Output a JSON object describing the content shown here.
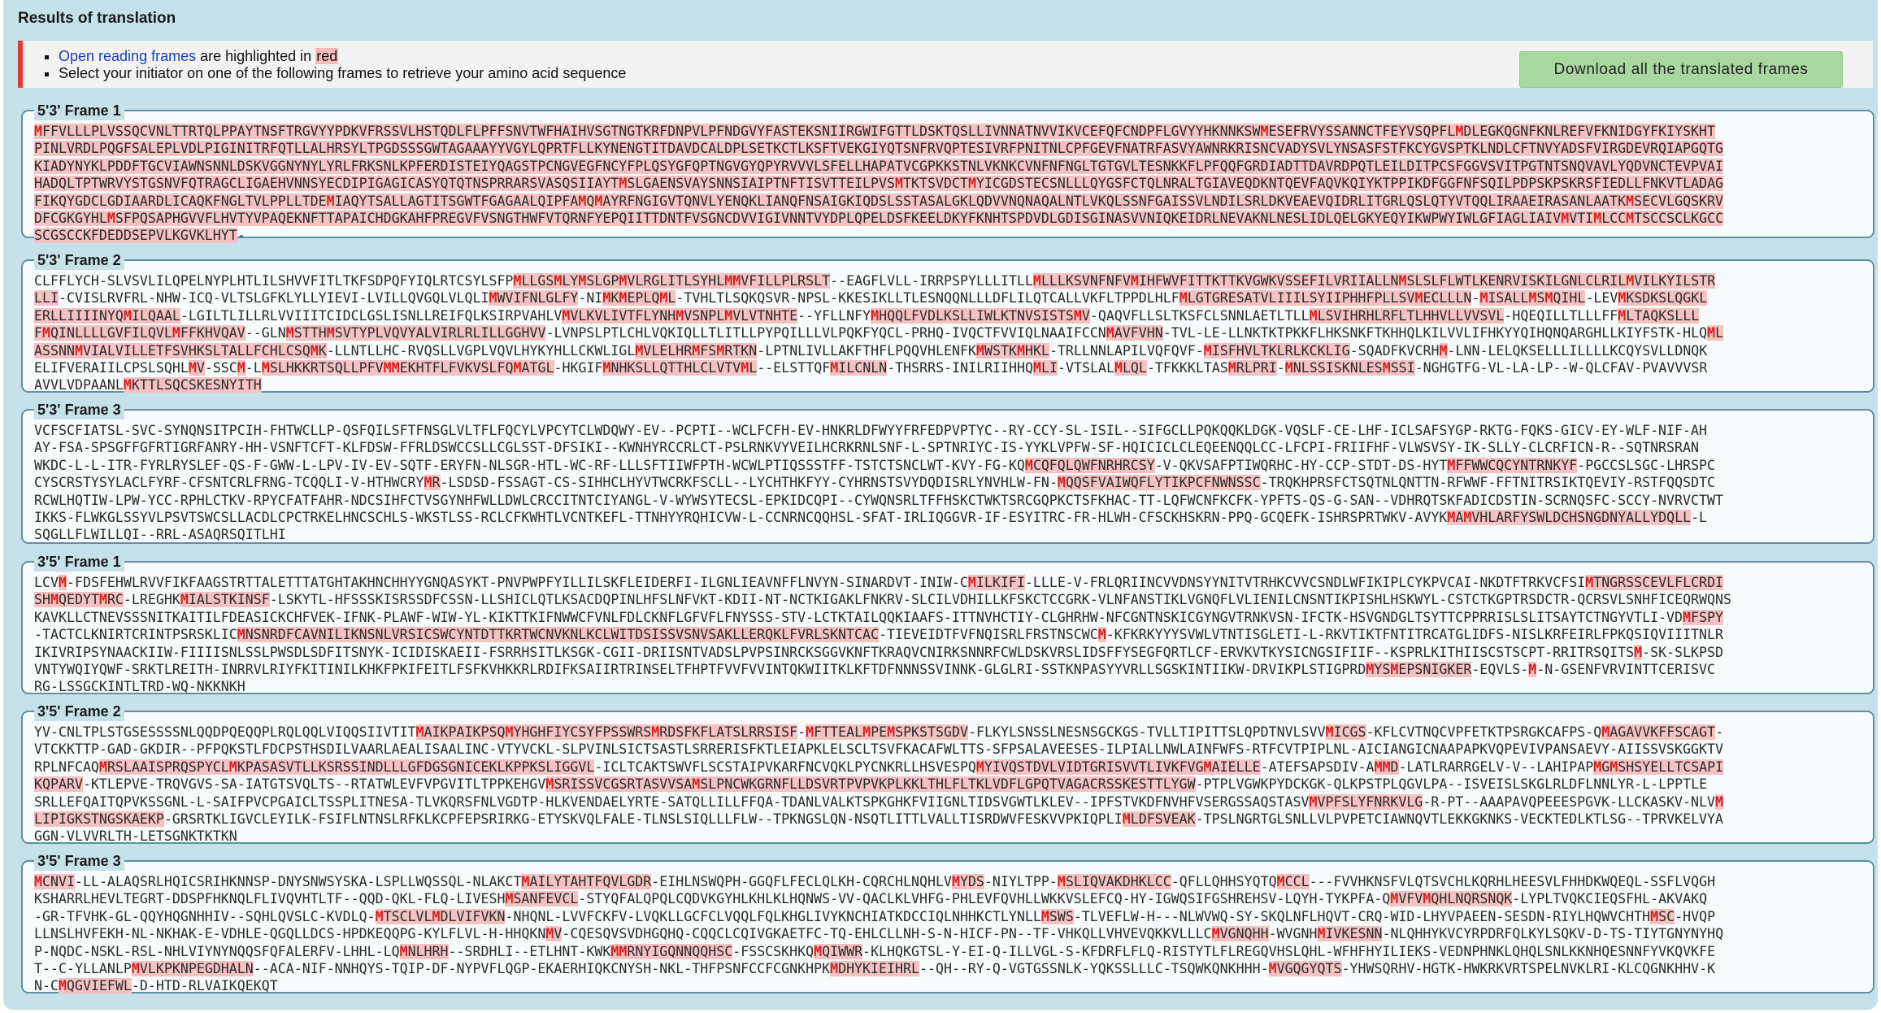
{
  "header": {
    "title": "Results of translation",
    "notice_orf_link": "Open reading frames",
    "notice_orf_rest": " are highlighted in ",
    "notice_orf_color": "red",
    "notice_select": "Select your initiator on one of the following frames to retrieve your amino acid sequence",
    "download_label": "Download all the translated frames"
  },
  "colors": {
    "highlight": "#f5c2c2",
    "start_codon": "#d81f1f",
    "notice_bar": "#e53935",
    "button": "#a8d8a0"
  },
  "frames": [
    {
      "title": "5'3' Frame 1",
      "lines": [
        "MFFVLLLPLVSSQCVNLTTRTQLPPAYTNSFTRGVYYPDKVFRSSVLHSTQDLFLPFFSNVTWFHAIHVSGTNGTKRFDNPVLPFNDGVYFASTEKSNIIRGWIFGTTLDSKTQSLLIVNNATNVVIKVCEFQFCNDPFLGVYYHKNNKSWMESEFRVYSSANNCTFEYVSQPFLMDLEGKQGNFKNLREFVFKNIDGYFKIYSKHT",
        "PINLVRDLPQGFSALEPLVDLPIGINITRFQTLLALHRSYLTPGDSSSGWTAGAAAYYVGYLQPRTFLLKYNENGTITDAVDCALDPLSETKCTLKSFTVEKGIYQTSNFRVQPTESIVRFPNITNLCPFGEVFNATRFASVYAWNRKRISNCVADYSVLYNSASFSTFKCYGVSPTKLNDLCFTNVYADSFVIRGDEVRQIAPGQTG",
        "KIADYNYKLPDDFTGCVIAWNSNNLDSKVGGNYNYLYRLFRKSNLKPFERDISTEIYQAGSTPCNGVEGFNCYFPLQSYGFQPTNGVGYQPYRVVVLSFELLHAPATVCGPKKSTNLVKNKCVNFNFNGLTGTGVLTESNKKFLPFQQFGRDIADTTDAVRDPQTLEILDITPCSFGGVSVITPGTNTSNQVAVLYQDVNCTEVPVAI",
        "HADQLTPTWRVYSTGSNVFQTRAGCLIGAEHVNNSYECDIPIGAGICASYQTQTNSPRRARSVASQSIIAYTMSLGAENSVAYSNNSIAIPTNFTISVTTEILPVSMTKTSVDCTMYICGDSTECSNLLLQYGSFCTQLNRALTGIAVEQDKNTQEVFAQVKQIYKTPPIKDFGGFNFSQILPDPSKPSKRSFIEDLLFNKVTLADAG",
        "FIKQYGDCLGDIAARDLICAQKFNGLTVLPPLLTDEMIAQYTSALLAGTITSGWTFGAGAALQIPFAMQMAYRFNGIGVTQNVLYENQKLIANQFNSAIGKIQDSLSSTASALGKLQDVVNQNAQALNTLVKQLSSNFGAISSVLNDILSRLDKVEAEVQIDRLITGRLQSLQTYVTQQLIRAAEIRASANLAATKMSECVLGQSKRV",
        "DFCGKGYHLMSFPQSAPHGVVFLHVTYVPAQEKNFTTAPAICHDGKAHFPREGVFVSNGTHWFVTQRNFYEPQIITTDNTFVSGNCDVVIGIVNNTVYDPLQPELDSFKEELDKYFKNHTSPDVDLGDISGINASVVNIQKEIDRLNEVAKNLNESLIDLQELGKYEQYIKWPWYIWLGFIAGLIAIVMVTIMLCCMTSCCSCLKGCC",
        "SCGSCCKFDEDDSEPVLKGVKLHYT-"
      ]
    },
    {
      "title": "5'3' Frame 2",
      "lines": [
        "CLFFLYCH-SLVSVLILQPELNYPLHTLILSHVVFITLTKFSDPQFYIQLRTCSYLSFPMLLGSMLYMSLGPMVLRGLITLSYHLMMVFILLPLRSLT--EAGFLVLL-IRRPSPYLLLITLLMLLLKSVNFNFVMIHFWVFITTKTTKVGWKVSSEFILVRIIALLNMSLSLFLWTLKENRVISKILGNLCLRILMVILKYILSTR",
        "LLI-CVISLRVFRL-NHW-ICQ-VLTSLGFKLYLLYIEVI-LVILLQVGQLVLQLIMWVIFNLGLFY-NIMKMEPLQML-TVHLTLSQKQSVR-NPSL-KKESIKLLTLESNQQNLLLDFLILQTCALLVKFLTPPDLHLFMLGTGRESATVLIIILSYIIPHHFPLLSVMECLLLN-MISALLMSMQIHL-LEVMKSDKSLQGKL",
        "ERLLIIIINYQMILQAAL-LGILTLILLRLVVIIITCIDCLGSLISNLLREIFQLKSIRPVAHLVMVLKVLIVTFLYNHMVSNPLMVLVTNHTE--YFLLNFYMHQQLFVDLKSLLIWLKTNVSISTSMV-QAQVFLLSLTKSFCLSNNLAETLTLLMLSVIHRHLRFLTLHHVLLVVSVL-HQEQILLTLLLFFMLTAQKSLLL",
        "FMQINLLLLGVFILQVLMFFKHVQAV--GLNMSTTHMSVTYPLVQVYALVIRLRLILLGGHVV-LVNPSLPTLCHLVQKIQLLTLITLLPYPQILLLVLPQKFYQCL-PRHQ-IVQCTFVVIQLNAAIFCCNMAVFVHN-TVL-LE-LLNKTKTPKKFLHKSNKFTKHHQLKILVVLIFHKYYQIHQNQARGHLLKIYFSTK-HLQML",
        "ASSNNMVIALVILLETFSVHKSLTALLFCHLCSQMK-LLNTLLHC-RVQSLLVGPLVQVLHYKYHLLCKWLIGLMVLELHRMFSMRTKN-LPTNLIVLLAKFTHFLPQQVHLENFKMWSTKMHKL-TRLLNNLAPILVQFQVF-MISFHVLTKLRLKCKLIG-SQADFKVCRHM-LNN-LELQKSELLLILLLLKCQYSVLLDNQK",
        "ELIFVERAIILCPSLSQHLMV-SSCM-LMSLHKKRTSQLLPFVMMEKHTFLFVKVSLFQMATGL-HKGIFMNHKSLLQTTHLCLVTVML--ELSTTQFMILCNLN-THSRRS-INILRIIHHQMLI-VTSLALMLQL-TFKKKLTASMRLPRI-MNLSSISKNLESMSSI-NGHGTFG-VL-LA-LP--W-QLCFAV-PVAVVVSR",
        "AVVLVDPAANLMKTTLSQCSKESNYITH"
      ]
    },
    {
      "title": "5'3' Frame 3",
      "lines": [
        "VCFSCFIATSL-SVC-SYNQNSITPCIH-FHTWCLLP-QSFQILSFTFNSGLVLTFLFQCYLVPCYTCLWDQWY-EV--PCPTI--WCLFCFH-EV-HNKRLDFWYYFRFEDPVPTYC--RY-CCY-SL-ISIL--SIFGCLLPQKQQKLDGK-VQSLF-CE-LHF-ICLSAFSYGP-RKTG-FQKS-GICV-EY-WLF-NIF-AH",
        "AY-FSA-SPSGFFGFRTIGRFANRY-HH-VSNFTCFT-KLFDSW-FFRLDSWCCSLLCGLSST-DFSIKI--KWNHYRCCRLCT-PSLRNKVYVEILHCRKRNLSNF-L-SPTNRIYC-IS-YYKLVPFW-SF-HQICICLCLEQEENQQLCC-LFCPI-FRIIFHF-VLWSVSY-IK-SLLY-CLCRFICN-R--SQTNRSRAN",
        "WKDC-L-L-ITR-FYRLRYSLEF-QS-F-GWW-L-LPV-IV-EV-SQTF-ERYFN-NLSGR-HTL-WC-RF-LLLSFTIIWFPTH-WCWLPTIQSSSTFF-TSTCTSNCLWT-KVY-FG-KQMCQFQLQWFNRHRCSY-V-QKVSAFPTIWQRHC-HY-CCP-STDT-DS-HYTMFFWWCQCYNTRNKYF-PGCCSLSGC-LHRSPC",
        "CYSCRSTYSYLACLFYRF-CFSNTCRLFRNG-TCQQLI-V-HTHWCRYMR-LSDSD-FSSAGT-CS-SIHHCLHYVTWCRKFSCLL--LYCHTHKFYY-CYHRNSTSVYDQDISRLYNVHLW-FN-MQQSFVAIWQFLYTIKPCFNWNSSC-TRQKHPRSFCTSQTNLQNTTN-RFWWF-FFTNITRSIKTQEVIY-RSTFQQSDTC",
        "RCWLHQTIW-LPW-YCC-RPHLCTKV-RPYCFATFAHR-NDCSIHFCTVSGYNHFWLLDWLCRCCITNTCIYANGL-V-WYWSYTECSL-EPKIDCQPI--CYWQNSRLTFFHSKCTWKTSRCGQPKCTSFKHAC-TT-LQFWCNFKCFK-YPFTS-QS-G-SAN--VDHRQTSKFADICDSTIN-SCRNQSFC-SCCY-NVRVCTWT",
        "IKKS-FLWKGLSSYVLPSVTSWCSLLACDLCPCTRKELHNCSCHLS-WKSTLSS-RCLCFKWHTLVCNTKEFL-TTNHYYRQHICVW-L-CCNRNCQQHSL-SFAT-IRLIQGGVR-IF-ESYITRC-FR-HLWH-CFSCKHSKRN-PPQ-GCQEFK-ISHRSPRTWKV-AVYKMAMVHLARFYSWLDCHSNGDNYALLYDQLL-L",
        "SQGLLFLWILLQI--RRL-ASAQRSQITLHI"
      ]
    },
    {
      "title": "3'5' Frame 1",
      "lines": [
        "LCVM-FDSFEHWLRVVFIKFAAGSTRTTALETTTATGHTAKHNCHHYYGNQASYKT-PNVPWPFYILLILSKFLEIDERFI-ILGNLIEAVNFFLNVYN-SINARDVT-INIW-CMILKIFI-LLLE-V-FRLQRIINCVVDNSYYNITVTRHKCVVCSNDLWFIKIPLCYKPVCAI-NKDTFTRKVCFSIMTNGRSSCEVLFLCRDI",
        "SHMQEDYTMRC-LREGHKMIALSTKINSF-LSKYTL-HFSSSKISRSSDFCSSN-LLSHICLQTLKSACDQPINLHFSLNFVKT-KDII-NT-NCTKIGAKLFNKRV-SLCILVDHILLKFSKCTCCGRK-VLNFANSTIKLVGNQFLVLIENILCNSNTIKPISHLHSKWYL-CSTCTKGPTRSDCTR-QCRSVLSNHFICEQRWQNS",
        "KAVKLLCTNEVSSSNITKAITILFDEASICKCHFVEK-IFNK-PLAWF-WIW-YL-KIKTTKIFNWWCFVNLFDLCKNFLGFVFLFNYSSS-STV-LCTKTAILQQKIAAFS-ITTNVHCTIY-CLGHRHW-NFCGNTNSKICGYNGVTRNKVSN-IFCTK-HSVGNDGLTSYTTCPPRRISLSLITSAYTCTNGYVTLI-VDMFSPY",
        "-TACTCLKNIRTCRINTPSRSKLICMNSNRDFCAVNILIKNSNLVRSICSWCYNTDTTKRTWCNVKNLKCLWITDSISSVSNVSAKLLERQKLFVRLSKNTCAC-TIEVEIDTFVFNQISRLFRSTNSCWCM-KFKRKYYYSVWLVTNTISGLETI-L-RKVTIKTFNTITRCATGLIDFS-NISLKRFEIRLFPKQSIQVIIITNLR",
        "IKIVRIPSYNAACKIIW-FIIIISNLSSLPWSDLSDFITSNYK-ICIDISKAEII-FSRRHSITLKSGK-CGII-DRIISNTVADSLPVPSINRCKSGGVKNFTKRAQVCNIRKSNNRFCWLDSKVRSLIDSFFYSEGFQRTLCF-ERVKVTKYSICNGSIFIIF--KSPRLKITHIISCSTSCPT-RRITRSQITSM-SK-SLKPSD",
        "VNTYWQIYQWF-SRKTLREITH-INRRVLRIYFKITINILKHKFPKIFEITLFSFKVHKKRLRDIFKSAIIRTRINSELTFHPTFVVFVVINTQKWIITKLKFTDFNNNSSVINNK-GLGLRI-SSTKNPASYYVRLLSGSKINTIIKW-DRVIKPLSTIGPRDMYSMEPSNIGKER-EQVLS-M-N-GSENFVRVINTTCERISVC",
        "RG-LSSGCKINTLTRD-WQ-NKKNKH"
      ]
    },
    {
      "title": "3'5' Frame 2",
      "lines": [
        "YV-CNLTPLSTGSESSSSNLQQDPQEQQPLRQLQQLVIQQSIIVTITMAIKPAIKPSQMYHGHFIYCSYFPSSWRSMRDSFKFLATSLRRSISF-MFTTEALMPEMSPKSTSGDV-FLKYLSNSSLNESNSGCKGS-TVLLTIPITTSLQPDTNVLSVVMICGS-KFLCVTNQCVPFETKTPSRGKCAFPS-QMAGAVVKFFSCAGT-",
        "VTCKKTTP-GAD-GKDIR--PFPQKSTLFDCPSTHSDILVAARLAEALISAALINC-VTYVCKL-SLPVINLSICTSASTLSRRERISFKTLEIAPKLELSCLTSVFKACAFWLTTS-SFPSALAVEESES-ILPIALLNWLAINFWFS-RTFCVTPIPLNL-AICIANGICNAAPAPKVQPEVIVPANSAEVY-AIISSVSKGGKTV",
        "RPLNFCAQMRSLAAISPRQSPYCLMKPASASVTLLKSRSSINDLLLGFDGSGNICEKLKPPKSLIGGVL-ICLTCAKTSWVFLSCSTAIPVKARFNCVQKLPYCNKRLLHSVESPQMYIVQSTDVLVIDTGRISVVTLIVKFVGMAIELLE-ATEFSAPSDIV-AMMD-LATLRARRGELV-V--LAHIPAPMGMSHSYELLTCSAPI",
        "KQPARV-KTLEPVE-TRQVGVS-SA-IATGTSVQLTS--RTATWLEVFVPGVITLTPPKEHGVMSRISSVCGSRTASVVSAMSLPNCWKGRNFLLDSVRTPVPVKPLKKLTHLFLTKLVDFLGPQTVAGACRSSKESTTLYGW-PTPLVGWKPYDCKGK-QLKPSTPLQGVLPA--ISVEISLSKGLRLDFLNNLYR-L-LPPTLE",
        "SRLLEFQAITQPVKSSGNL-L-SAIFPVCPGAICLTSSPLITNESA-TLVKQRSFNLVGDTP-HLKVENDAELYRTE-SATQLLILLFFQA-TDANLVALKTSPKGHKFVIIGNLTIDSVGWTLKLEV--IPFSTVKDFNVHFVSERGSSAQSTASVMVPFSLYFNRKVLG-R-PT--AAAPAVQPEEESPGVK-LLCKASKV-NLVM",
        "LIPIGKSTNGSKAEKP-GRSRTKLIGVCLEYILK-FSIFLNTNSLRFKLKCPFEPSRIRKG-ETYSKVQLFALE-TLNSLSIQLLLFLW--TPKNGSLQN-NSQTLITTLVALLTISRDWVFESKVVPKIQPLIMLDFSVEAK-TPSLNGRTGLSNLLVLPVPETCIAWNQVTLEKKGKNKS-VECKTEDLKTLSG--TPRVKELVYA",
        "GGN-VLVVRLTH-LETSGNKTKTKN"
      ]
    },
    {
      "title": "3'5' Frame 3",
      "lines": [
        "MCNVI-LL-ALAQSRLHQICSRIHKNNSP-DNYSNWSYSKA-LSPLLWQSSQL-NLAKCTMAILYTAHTFQVLGDR-EIHLNSWQPH-GGQFLFECLQLKH-CQRCHLNQHLVMYDS-NIYLTPP-MSLIQVAKDHKLCC-QFLLQHHSYQTQMCCL---FVVHKNSFVLQTSVCHLKQRHLHEESVLFHHDKWQEQL-SSFLVQGH",
        "KSHARRLHEVLTEGRT-DDSPFHKNQLFLIVQVHTLTF--QQD-QKL-FLQ-LIVESHMSANFEVCL-STYQFALQPQLCQDVKGYHLKHLKLHQNWS-VV-QACLKLVHFG-PHLEVFQVHLLWKKVSLEFCQ-HY-IGWQSIFGSHREHSV-LQYH-TYKPFA-QMVFVMQHLNQRSNQK-LYPLTVQKCIEQSFHL-AKVAKQ",
        "-GR-TFVHK-GL-QQYHQGNHHIV--SQHLQVSLC-KVDLQ-MTSCLVLMDLVIFVKN-NHQNL-LVVFCKFV-LVQKLLGCFCLVQQLFQLKHGLIVYKNCHIATKDCCIQLNHHKCTLYNLLMSWS-TLVEFLW-H---NLWVWQ-SY-SKQLNFLHQVT-CRQ-WID-LHYVPAEEN-SESDN-RIYLHQWVCHTHMSC-HVQP",
        "LLNSLHVFEKH-NL-NKHAK-E-VDHLE-QGQLLDCS-HPDKEQQPG-KYLFLVL-H-HHQKNMV-CQESQVSVDHGQHQ-CQQCLCQIVGKAETFC-TQ-EHLCLLNH-S-N-HICF-PN--TF-VHKQLLVHVEVQKKVLLLCMVGNQHH-WVGNHMIVKESNN-NLQHHYKVCYRPDRFQLKYLSQKV-D-TS-TIYTGNYNYHQ",
        "P-NQDC-NSKL-RSL-NHLVIYNYNQQSFQFALERFV-LHHL-LQMNLHRH--SRDHLI--ETLHNT-KWKMMRNYIGQNNQQHSC-FSSCSKHKQMQIWWR-KLHQKGTSL-Y-EI-Q-ILLVGL-S-KFDRFLFLQ-RISTYTLFLREGQVHSLQHL-WFHFHYILIEKS-VEDNPHNKLQHQLSNLKKNHQESNNFYVKQVKFE",
        "T--C-YLLANLPMVLKPKNPEGDHALN--ACA-NIF-NNHQYS-TQIP-DF-NYPVFLQGP-EKAERHIQKCNYSH-NKL-THFPSNFCCFCGNKHPKMDHYKIEIHRL--QH--RY-Q-VGTGSSNLK-YQKSSLLLC-TSQWKQNKHHH-MVGQGYQTS-YHWSQRHV-HGTK-HWKRKVRTSPELNVKLRI-KLCQGNKHHV-K",
        "N-CMQGVIEFWL-D-HTD-RLVAIKQEKQT"
      ]
    }
  ]
}
